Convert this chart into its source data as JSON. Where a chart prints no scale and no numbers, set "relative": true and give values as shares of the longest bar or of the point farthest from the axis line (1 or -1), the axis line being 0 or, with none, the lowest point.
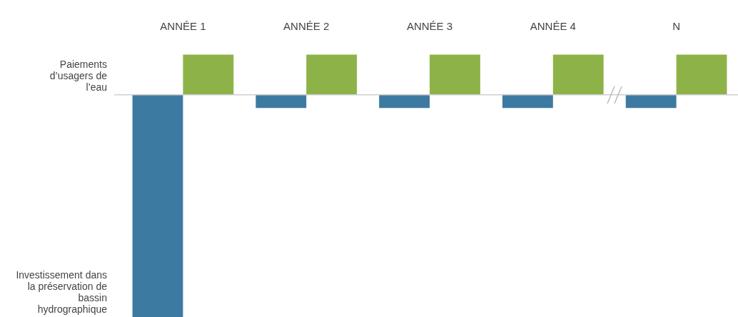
{
  "chart_data": {
    "type": "bar",
    "relative": true,
    "categories": [
      "ANNÉE 1",
      "ANNÉE 2",
      "ANNÉE 3",
      "ANNÉE 4",
      "N"
    ],
    "series": [
      {
        "color": "#3d7aa1",
        "values": [
          -1,
          -0.06,
          -0.06,
          -0.06,
          -0.06
        ]
      },
      {
        "color": "#8db348",
        "values": [
          0.18,
          0.18,
          0.18,
          0.18,
          0.18
        ]
      }
    ],
    "annotations": [
      "Paiements d’usagers de l’eau",
      "Investissement dans la préservation de bassin hydrographique"
    ],
    "grid": false,
    "legend": false
  }
}
